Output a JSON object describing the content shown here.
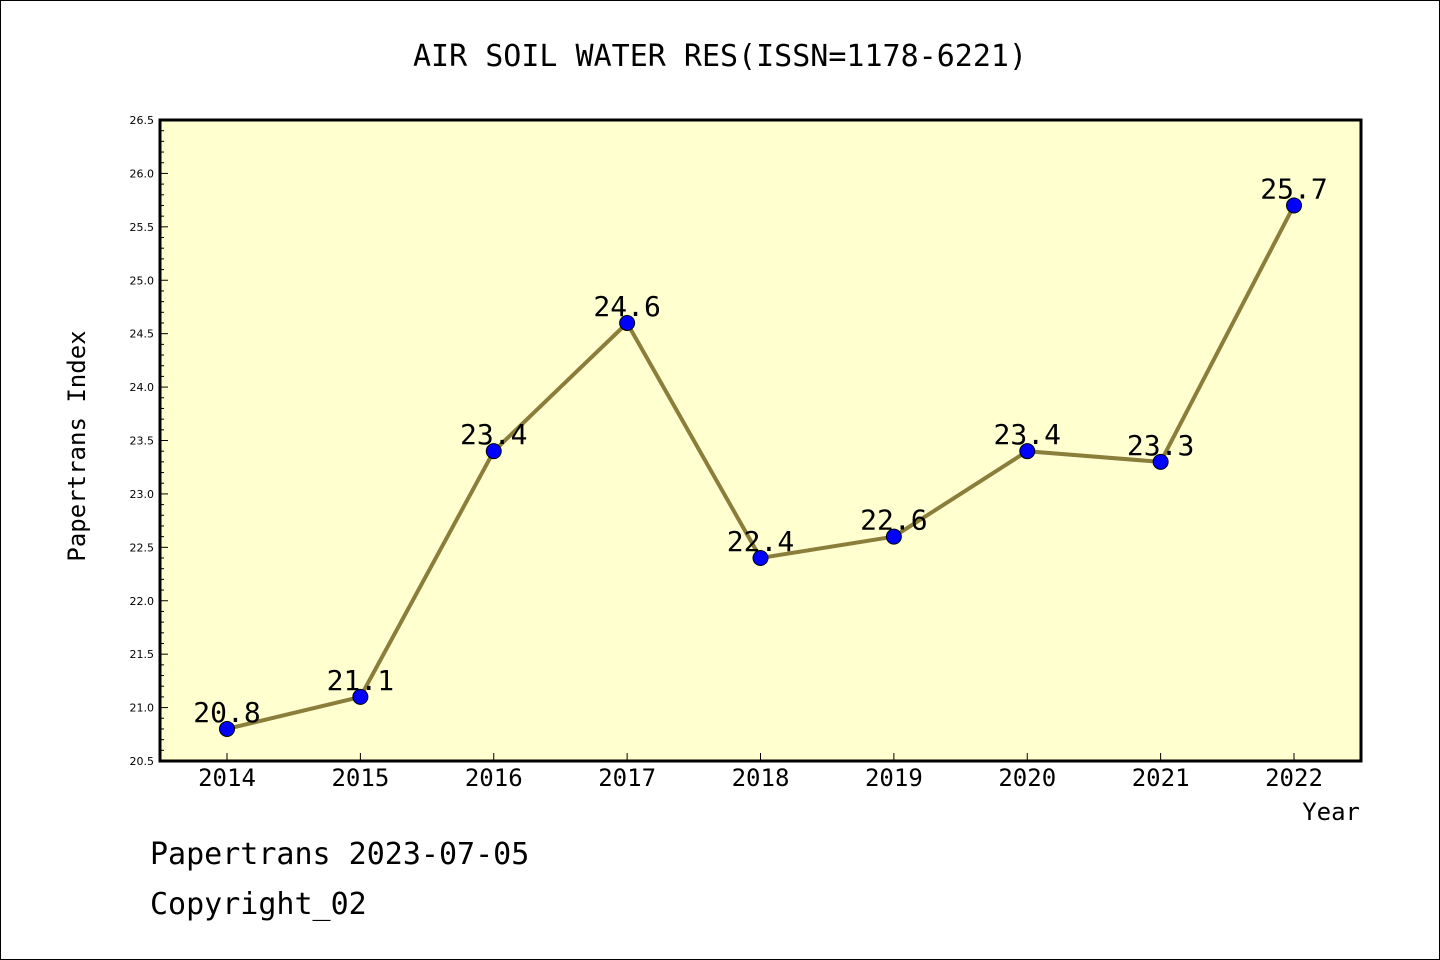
{
  "chart_data": {
    "type": "line",
    "title": "AIR SOIL WATER RES(ISSN=1178-6221)",
    "xlabel": "Year",
    "ylabel": "Papertrans Index",
    "categories": [
      "2014",
      "2015",
      "2016",
      "2017",
      "2018",
      "2019",
      "2020",
      "2021",
      "2022"
    ],
    "values": [
      20.8,
      21.1,
      23.4,
      24.6,
      22.4,
      22.6,
      23.4,
      23.3,
      25.7
    ],
    "data_labels": [
      "20.8",
      "21.1",
      "23.4",
      "24.6",
      "22.4",
      "22.6",
      "23.4",
      "23.3",
      "25.7"
    ],
    "ylim": [
      20.5,
      26.5
    ],
    "yticks": [
      "20.5",
      "21.0",
      "21.5",
      "22.0",
      "22.5",
      "23.0",
      "23.5",
      "24.0",
      "24.5",
      "25.0",
      "25.5",
      "26.0",
      "26.5"
    ],
    "grid": false,
    "colors": {
      "plot_background": "#ffffd0",
      "line": "#8b7d3a",
      "marker": "#0000ff"
    }
  },
  "footer": {
    "line1": "Papertrans 2023-07-05",
    "line2": "Copyright_02"
  }
}
